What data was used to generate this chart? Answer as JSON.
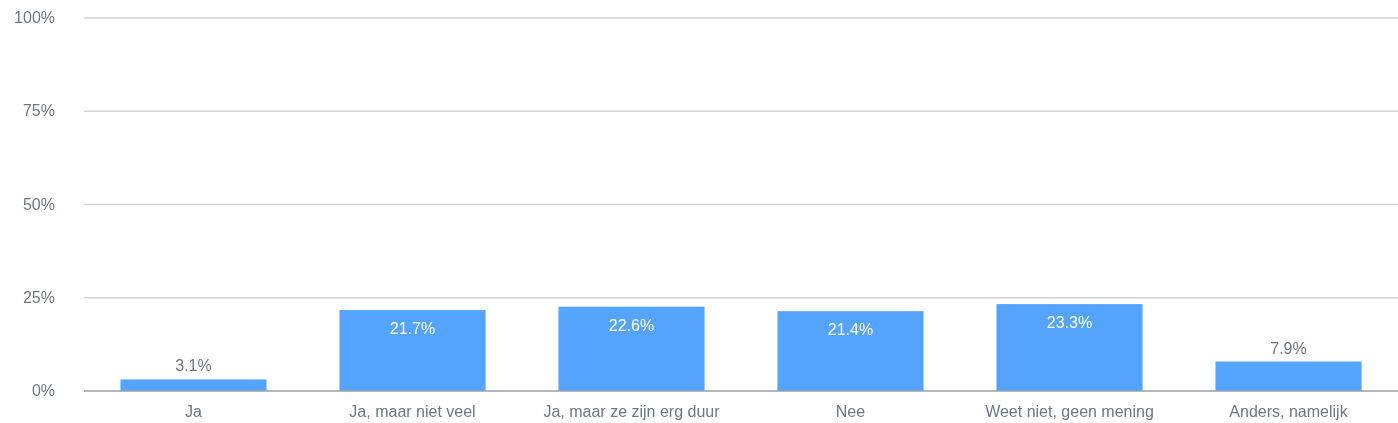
{
  "chart_data": {
    "type": "bar",
    "categories": [
      "Ja",
      "Ja, maar niet veel",
      "Ja, maar ze zijn erg duur",
      "Nee",
      "Weet niet, geen mening",
      "Anders, namelijk"
    ],
    "values": [
      3.1,
      21.7,
      22.6,
      21.4,
      23.3,
      7.9
    ],
    "color": "#54a3fd",
    "ylim": [
      0,
      100
    ],
    "yticks": [
      {
        "value": 0,
        "label": "0%"
      },
      {
        "value": 25,
        "label": "25%"
      },
      {
        "value": 50,
        "label": "50%"
      },
      {
        "value": 75,
        "label": "75%"
      },
      {
        "value": 100,
        "label": "100%"
      }
    ],
    "grid": "y",
    "data_labels": true,
    "value_labels": [
      "3.1%",
      "21.7%",
      "22.6%",
      "21.4%",
      "23.3%",
      "7.9%"
    ]
  }
}
